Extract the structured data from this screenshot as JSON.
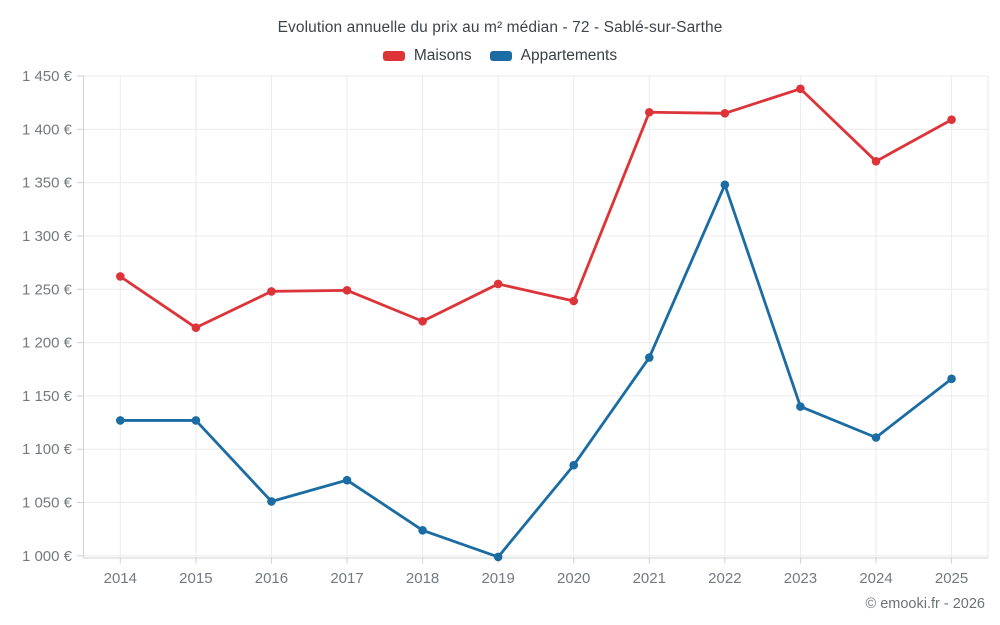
{
  "header": {
    "title": "Evolution annuelle du prix au m² médian - 72 - Sablé-sur-Sarthe"
  },
  "legend": {
    "items": [
      {
        "label": "Maisons",
        "color": "#dc3439"
      },
      {
        "label": "Appartements",
        "color": "#1a6ca3"
      }
    ]
  },
  "footer": {
    "attribution": "© emooki.fr - 2026"
  },
  "chart_data": {
    "type": "line",
    "title": "Evolution annuelle du prix au m² médian - 72 - Sablé-sur-Sarthe",
    "categories": [
      "2014",
      "2015",
      "2016",
      "2017",
      "2018",
      "2019",
      "2020",
      "2021",
      "2022",
      "2023",
      "2024",
      "2025"
    ],
    "series": [
      {
        "name": "Maisons",
        "color": "#dc3439",
        "marker": "circle",
        "values": [
          1262,
          1214,
          1248,
          1249,
          1220,
          1255,
          1239,
          1416,
          1415,
          1438,
          1370,
          1409
        ]
      },
      {
        "name": "Appartements",
        "color": "#1a6ca3",
        "marker": "circle",
        "values": [
          1127,
          1127,
          1051,
          1071,
          1024,
          999,
          1085,
          1186,
          1348,
          1140,
          1111,
          1166
        ]
      }
    ],
    "xlabel": "",
    "ylabel": "",
    "ylim": [
      998,
      1450
    ],
    "yticks": [
      1000,
      1050,
      1100,
      1150,
      1200,
      1250,
      1300,
      1350,
      1400,
      1450
    ],
    "ytick_labels": [
      "1 000 €",
      "1 050 €",
      "1 100 €",
      "1 150 €",
      "1 200 €",
      "1 250 €",
      "1 300 €",
      "1 350 €",
      "1 400 €",
      "1 450 €"
    ],
    "grid": true,
    "legend_position": "top",
    "attribution": "© emooki.fr - 2026"
  },
  "colors": {
    "background": "#ffffff",
    "grid": "#ebebeb",
    "axis": "#d2d2d2",
    "tick": "#cfcfcf",
    "tick_label": "#75797d",
    "title": "#3f444b",
    "legend_label": "#3a3f45",
    "attribution": "#6d7278"
  }
}
